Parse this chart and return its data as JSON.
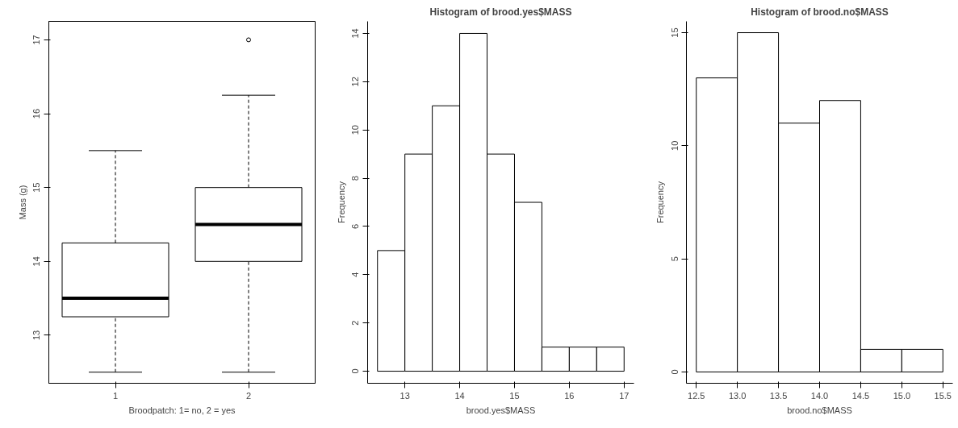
{
  "chart_data": [
    {
      "type": "box",
      "categories": [
        "1",
        "2"
      ],
      "xlabel": "Broodpatch: 1= no, 2 = yes",
      "ylabel": "Mass (g)",
      "ylim": [
        12.35,
        17.25
      ],
      "yticks": [
        13,
        14,
        15,
        16,
        17
      ],
      "grid": false,
      "color": "#ffffff",
      "boxes": [
        {
          "low": 12.5,
          "q1": 13.25,
          "median": 13.5,
          "q3": 14.25,
          "high": 15.5
        },
        {
          "low": 12.5,
          "q1": 14.0,
          "median": 14.5,
          "q3": 15.0,
          "high": 16.25,
          "outliers": [
            17
          ]
        }
      ]
    },
    {
      "type": "histogram",
      "title": "Histogram of brood.yes$MASS",
      "xlabel": "brood.yes$MASS",
      "ylabel": "Frequency",
      "color": "#ffffff",
      "grid": false,
      "bins": [
        12.5,
        13,
        13.5,
        14,
        14.5,
        15,
        15.5,
        16,
        16.5,
        17
      ],
      "values": [
        5,
        9,
        11,
        14,
        9,
        7,
        1,
        1,
        1
      ],
      "xlim": [
        12.32,
        17.18
      ],
      "xticks": [
        13,
        14,
        15,
        16,
        17
      ],
      "ylim": [
        -0.5,
        14.5
      ],
      "yticks": [
        0,
        2,
        4,
        6,
        8,
        10,
        12,
        14
      ]
    },
    {
      "type": "histogram",
      "title": "Histogram of brood.no$MASS",
      "xlabel": "brood.no$MASS",
      "ylabel": "Frequency",
      "color": "#ffffff",
      "grid": false,
      "bins": [
        12.5,
        13,
        13.5,
        14,
        14.5,
        15,
        15.5
      ],
      "values": [
        13,
        15,
        11,
        12,
        1,
        1
      ],
      "xlim": [
        12.38,
        15.62
      ],
      "xticks": [
        12.5,
        {
          "value": 13,
          "label": "13.0"
        },
        13.5,
        {
          "value": 14,
          "label": "14.0"
        },
        14.5,
        {
          "value": 15,
          "label": "15.0"
        },
        15.5
      ],
      "ylim": [
        -0.5,
        15.5
      ],
      "yticks": [
        0,
        5,
        10,
        15
      ]
    }
  ]
}
